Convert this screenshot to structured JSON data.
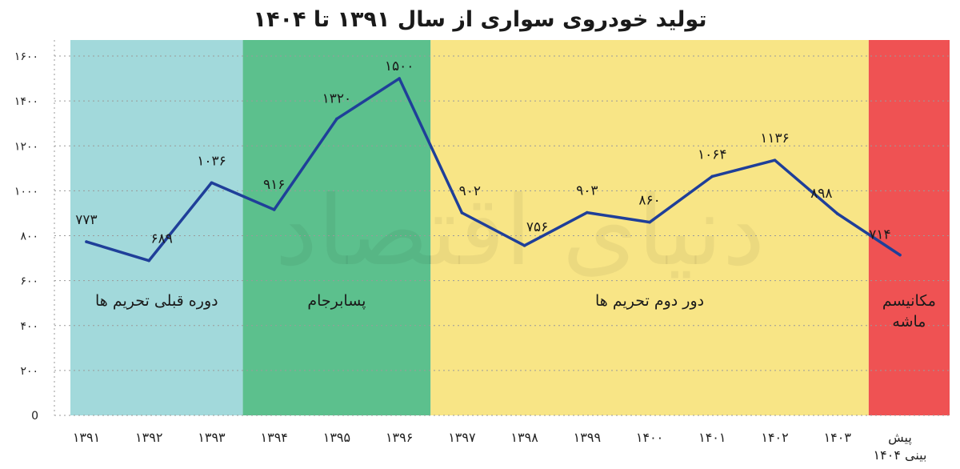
{
  "title": "تولید خودروی سواری از سال ۱۳۹۱ تا ۱۴۰۴",
  "watermark": "دنیای اقتصاد",
  "chart_data": {
    "type": "line",
    "categories": [
      "۱۳۹۱",
      "۱۳۹۲",
      "۱۳۹۳",
      "۱۳۹۴",
      "۱۳۹۵",
      "۱۳۹۶",
      "۱۳۹۷",
      "۱۳۹۸",
      "۱۳۹۹",
      "۱۴۰۰",
      "۱۴۰۱",
      "۱۴۰۲",
      "۱۴۰۳",
      "پیش بینی ۱۴۰۴"
    ],
    "values": [
      773,
      689,
      1036,
      916,
      1320,
      1500,
      902,
      756,
      903,
      860,
      1064,
      1136,
      898,
      714
    ],
    "value_labels": [
      "۷۷۳",
      "۶۸۹",
      "۱۰۳۶",
      "۹۱۶",
      "۱۳۲۰",
      "۱۵۰۰",
      "۹۰۲",
      "۷۵۶",
      "۹۰۳",
      "۸۶۰",
      "۱۰۶۴",
      "۱۱۳۶",
      "۸۹۸",
      "۷۱۴"
    ],
    "yticks": [
      0,
      200,
      400,
      600,
      800,
      1000,
      1200,
      1400,
      1600
    ],
    "ylim": [
      0,
      1600
    ],
    "grid": true,
    "line_color": "#1f3f99",
    "periods": [
      {
        "label": "دوره قبلی تحریم ها",
        "start": 0,
        "end": 2,
        "color": "#a2d9db"
      },
      {
        "label": "پسابرجام",
        "start": 3,
        "end": 5,
        "color": "#5cc08d"
      },
      {
        "label": "دور دوم تحریم ها",
        "start": 6,
        "end": 12,
        "color": "#f8e586"
      },
      {
        "label": "مکانیسم ماشه",
        "start": 13,
        "end": 13,
        "color": "#ef5253"
      }
    ]
  }
}
